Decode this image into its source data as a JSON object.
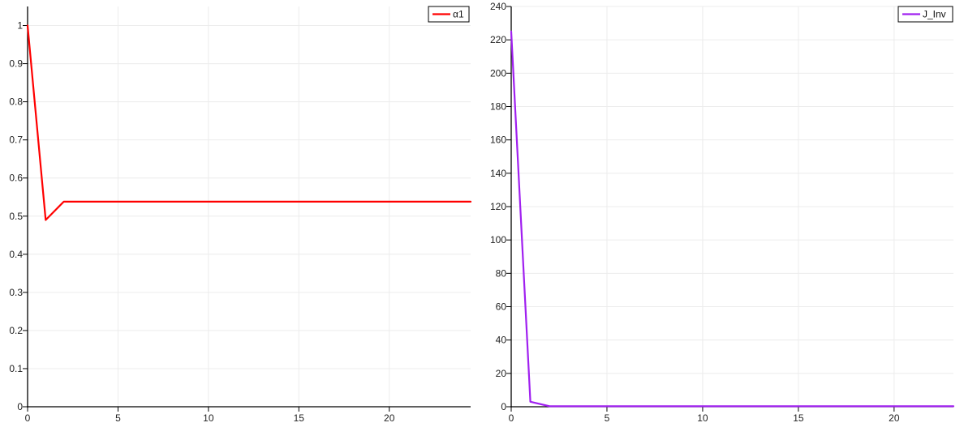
{
  "chart_data": [
    {
      "type": "line",
      "title": "",
      "xlabel": "",
      "ylabel": "",
      "xlim": [
        0,
        24.5
      ],
      "ylim": [
        0,
        1.05
      ],
      "x_ticks": [
        0,
        5,
        10,
        15,
        20
      ],
      "y_ticks": [
        0,
        0.1,
        0.2,
        0.3,
        0.4,
        0.5,
        0.6,
        0.7,
        0.8,
        0.9,
        1
      ],
      "grid": true,
      "legend_position": "top-right",
      "series": [
        {
          "name": "α1",
          "color": "#ff0000",
          "x": [
            0,
            1,
            2,
            3,
            4,
            5,
            6,
            7,
            8,
            9,
            10,
            11,
            12,
            13,
            14,
            15,
            16,
            17,
            18,
            19,
            20,
            21,
            22,
            23,
            24,
            24.5
          ],
          "y": [
            1.0,
            0.49,
            0.538,
            0.538,
            0.538,
            0.538,
            0.538,
            0.538,
            0.538,
            0.538,
            0.538,
            0.538,
            0.538,
            0.538,
            0.538,
            0.538,
            0.538,
            0.538,
            0.538,
            0.538,
            0.538,
            0.538,
            0.538,
            0.538,
            0.538,
            0.538
          ]
        }
      ]
    },
    {
      "type": "line",
      "title": "",
      "xlabel": "",
      "ylabel": "",
      "xlim": [
        0,
        23.1
      ],
      "ylim": [
        0,
        240
      ],
      "x_ticks": [
        0,
        5,
        10,
        15,
        20
      ],
      "y_ticks": [
        0,
        20,
        40,
        60,
        80,
        100,
        120,
        140,
        160,
        180,
        200,
        220,
        240
      ],
      "grid": true,
      "legend_position": "top-right",
      "series": [
        {
          "name": "J_Inv",
          "color": "#a020f0",
          "x": [
            0,
            1,
            2,
            3,
            4,
            5,
            6,
            7,
            8,
            9,
            10,
            11,
            12,
            13,
            14,
            15,
            16,
            17,
            18,
            19,
            20,
            21,
            22,
            23,
            23.1
          ],
          "y": [
            225,
            3,
            0.3,
            0.3,
            0.3,
            0.3,
            0.3,
            0.3,
            0.3,
            0.3,
            0.3,
            0.3,
            0.3,
            0.3,
            0.3,
            0.3,
            0.3,
            0.3,
            0.3,
            0.3,
            0.3,
            0.3,
            0.3,
            0.3,
            0.3
          ]
        }
      ]
    }
  ]
}
